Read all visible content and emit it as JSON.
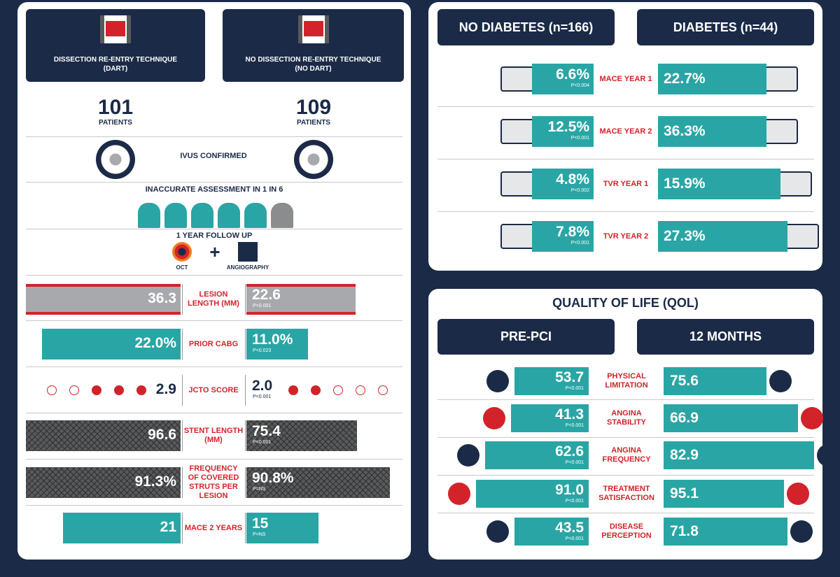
{
  "left_panel": {
    "groups": [
      {
        "title": "DISSECTION RE-ENTRY TECHNIQUE",
        "subtitle": "(DART)"
      },
      {
        "title": "NO DISSECTION RE-ENTRY TECHNIQUE",
        "subtitle": "(NO DART)"
      }
    ],
    "patients": [
      {
        "count": "101",
        "label": "PATIENTS"
      },
      {
        "count": "109",
        "label": "PATIENTS"
      }
    ],
    "ivus": "IVUS CONFIRMED",
    "assessment": "INACCURATE ASSESSMENT IN 1 IN 6",
    "follow_up": {
      "title": "1 YEAR FOLLOW UP",
      "methods": [
        "OCT",
        "ANGIOGRAPHY"
      ]
    },
    "rows": [
      {
        "label": "LESION LENGTH (MM)",
        "dart": "36.3",
        "no_dart": "22.6",
        "p": "P<0.001"
      },
      {
        "label": "PRIOR CABG",
        "dart": "22.0%",
        "no_dart": "11.0%",
        "p": "P<0.023"
      },
      {
        "label": "JCTO SCORE",
        "dart": "2.9",
        "no_dart": "2.0",
        "p": "P<0.001"
      },
      {
        "label": "STENT LENGTH (MM)",
        "dart": "96.6",
        "no_dart": "75.4",
        "p": "P<0.001"
      },
      {
        "label": "FREQUENCY OF COVERED STRUTS PER LESION",
        "dart": "91.3%",
        "no_dart": "90.8%",
        "p": "P=NS"
      },
      {
        "label": "MACE 2 YEARS",
        "dart": "21",
        "no_dart": "15",
        "p": "P=NS"
      }
    ]
  },
  "diabetes_panel": {
    "groups": [
      "NO DIABETES (n=166)",
      "DIABETES (n=44)"
    ],
    "rows": [
      {
        "label": "MACE YEAR 1",
        "no_diabetes": "6.6%",
        "p": "P<0.004",
        "diabetes": "22.7%"
      },
      {
        "label": "MACE YEAR 2",
        "no_diabetes": "12.5%",
        "p": "P<0.001",
        "diabetes": "36.3%"
      },
      {
        "label": "TVR YEAR 1",
        "no_diabetes": "4.8%",
        "p": "P<0.002",
        "diabetes": "15.9%"
      },
      {
        "label": "TVR YEAR 2",
        "no_diabetes": "7.8%",
        "p": "P<0.001",
        "diabetes": "27.3%"
      }
    ]
  },
  "qol_panel": {
    "title": "QUALITY OF LIFE (QOL)",
    "groups": [
      "PRE-PCI",
      "12 MONTHS"
    ],
    "rows": [
      {
        "label": "PHYSICAL LIMITATION",
        "pre_pci": "53.7",
        "p": "P<0.001",
        "months_12": "75.6"
      },
      {
        "label": "ANGINA STABILITY",
        "pre_pci": "41.3",
        "p": "P<0.001",
        "months_12": "66.9"
      },
      {
        "label": "ANGINA FREQUENCY",
        "pre_pci": "62.6",
        "p": "P<0.001",
        "months_12": "82.9"
      },
      {
        "label": "TREATMENT SATISFACTION",
        "pre_pci": "91.0",
        "p": "P<0.001",
        "months_12": "95.1"
      },
      {
        "label": "DISEASE PERCEPTION",
        "pre_pci": "43.5",
        "p": "P<0.001",
        "months_12": "71.8"
      }
    ]
  }
}
